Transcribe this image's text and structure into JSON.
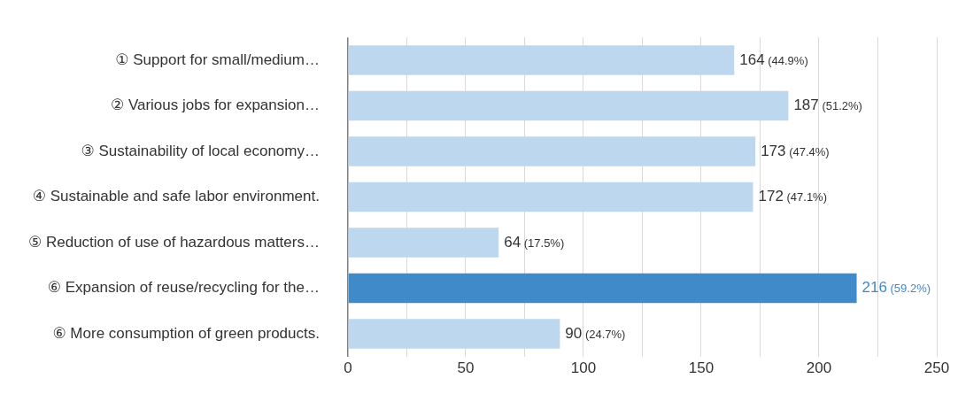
{
  "chart_data": {
    "type": "bar",
    "orientation": "horizontal",
    "categories": [
      "① Support for small/medium…",
      "② Various jobs for expansion…",
      "③ Sustainability of local economy…",
      "④ Sustainable and safe labor environment.",
      "⑤ Reduction of use of hazardous matters…",
      "⑥ Expansion of reuse/recycling for the…",
      "⑥ More consumption of green products."
    ],
    "values": [
      164,
      187,
      173,
      172,
      64,
      216,
      90
    ],
    "colors": [
      "#bdd7ee",
      "#bdd7ee",
      "#bdd7ee",
      "#bdd7ee",
      "#bdd7ee",
      "#418ac9",
      "#bdd7ee"
    ],
    "value_labels": [
      "164 (44.9%)",
      "187 (51.2%)",
      "173 (47.4%)",
      "172 (47.1%)",
      "64 (17.5%)",
      "216 (59.2%)",
      "90 (24.7%)"
    ],
    "xlim": [
      0,
      250
    ],
    "xticks": [
      0,
      {
        "value": 25,
        "label": null
      },
      50,
      {
        "value": 75,
        "label": null
      },
      100,
      {
        "value": 125,
        "label": null
      },
      150,
      {
        "value": 175,
        "label": null
      },
      200,
      {
        "value": 225,
        "label": null
      },
      250
    ],
    "grid": "x",
    "legend": false
  }
}
